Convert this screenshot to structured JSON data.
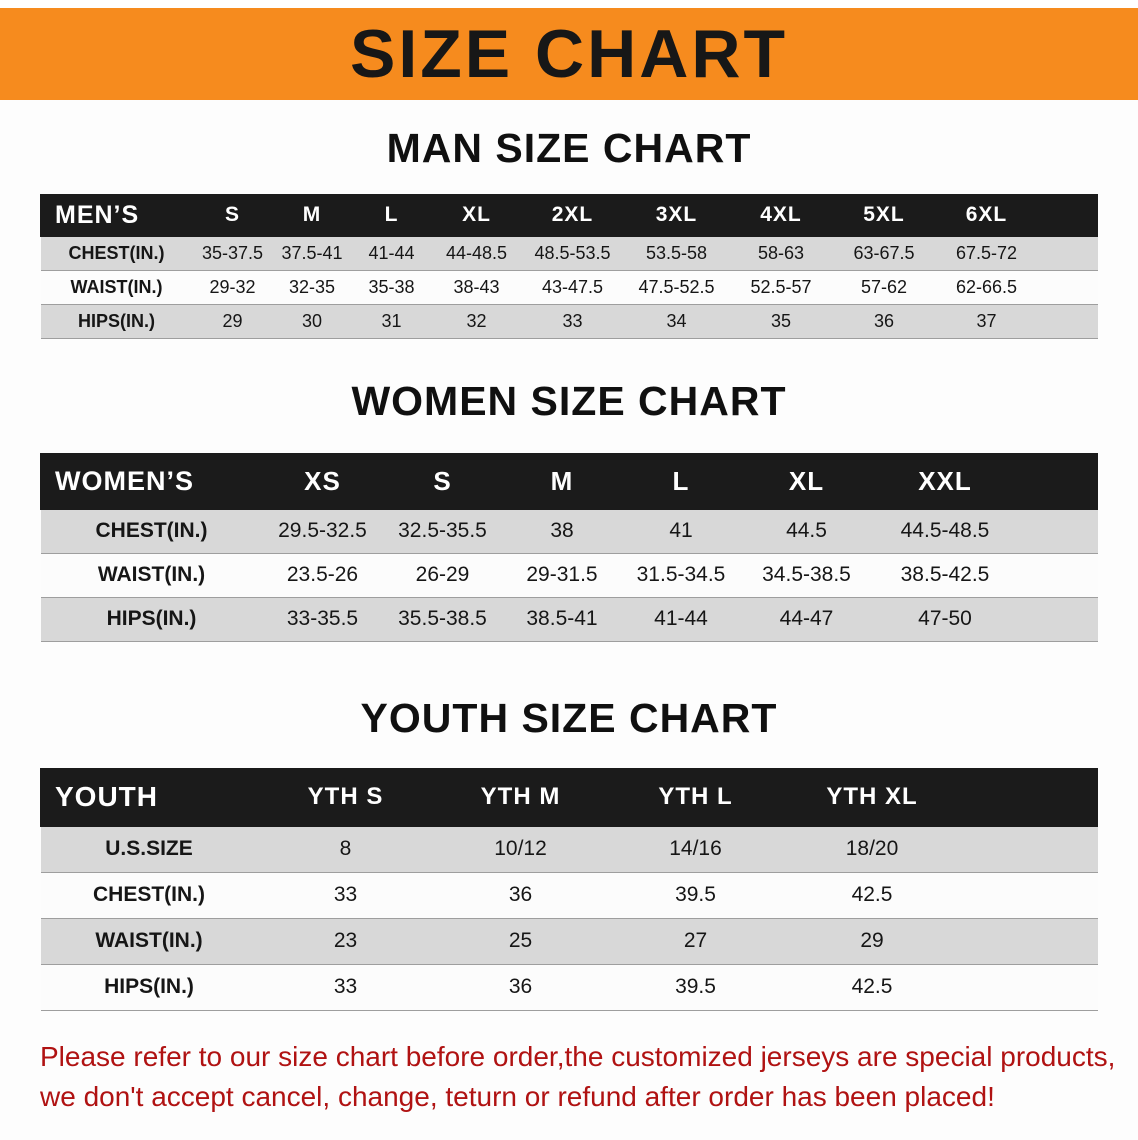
{
  "banner": {
    "title": "SIZE CHART",
    "bg_color": "#f68b1e",
    "text_color": "#171717"
  },
  "headings": {
    "men": "MAN SIZE CHART",
    "women": "WOMEN SIZE CHART",
    "youth": "YOUTH SIZE CHART"
  },
  "tables": {
    "men": {
      "title": "MEN’S",
      "columns": [
        "S",
        "M",
        "L",
        "XL",
        "2XL",
        "3XL",
        "4XL",
        "5XL",
        "6XL"
      ],
      "rows": [
        {
          "label": "CHEST(IN.)",
          "values": [
            "35-37.5",
            "37.5-41",
            "41-44",
            "44-48.5",
            "48.5-53.5",
            "53.5-58",
            "58-63",
            "63-67.5",
            "67.5-72"
          ]
        },
        {
          "label": "WAIST(IN.)",
          "values": [
            "29-32",
            "32-35",
            "35-38",
            "38-43",
            "43-47.5",
            "47.5-52.5",
            "52.5-57",
            "57-62",
            "62-66.5"
          ]
        },
        {
          "label": "HIPS(IN.)",
          "values": [
            "29",
            "30",
            "31",
            "32",
            "33",
            "34",
            "35",
            "36",
            "37"
          ]
        }
      ]
    },
    "women": {
      "title": "WOMEN’S",
      "columns": [
        "XS",
        "S",
        "M",
        "L",
        "XL",
        "XXL"
      ],
      "rows": [
        {
          "label": "CHEST(IN.)",
          "values": [
            "29.5-32.5",
            "32.5-35.5",
            "38",
            "41",
            "44.5",
            "44.5-48.5"
          ]
        },
        {
          "label": "WAIST(IN.)",
          "values": [
            "23.5-26",
            "26-29",
            "29-31.5",
            "31.5-34.5",
            "34.5-38.5",
            "38.5-42.5"
          ]
        },
        {
          "label": "HIPS(IN.)",
          "values": [
            "33-35.5",
            "35.5-38.5",
            "38.5-41",
            "41-44",
            "44-47",
            "47-50"
          ]
        }
      ]
    },
    "youth": {
      "title": "YOUTH",
      "columns": [
        "YTH S",
        "YTH M",
        "YTH L",
        "YTH XL"
      ],
      "rows": [
        {
          "label": "U.S.SIZE",
          "values": [
            "8",
            "10/12",
            "14/16",
            "18/20"
          ]
        },
        {
          "label": "CHEST(IN.)",
          "values": [
            "33",
            "36",
            "39.5",
            "42.5"
          ]
        },
        {
          "label": "WAIST(IN.)",
          "values": [
            "23",
            "25",
            "27",
            "29"
          ]
        },
        {
          "label": "HIPS(IN.)",
          "values": [
            "33",
            "36",
            "39.5",
            "42.5"
          ]
        }
      ]
    }
  },
  "disclaimer": {
    "line1": "Please refer to our size chart before order,the customized jerseys are special products,",
    "line2": "we don't accept cancel, change, teturn or refund after order has been placed!",
    "color": "#b01212"
  },
  "colors": {
    "banner_orange": "#f68b1e",
    "table_header_black": "#1b1b1b",
    "row_stripe_gray": "#d8d8d8",
    "row_stripe_white": "#fcfcfc",
    "disclaimer_red": "#b01212"
  }
}
